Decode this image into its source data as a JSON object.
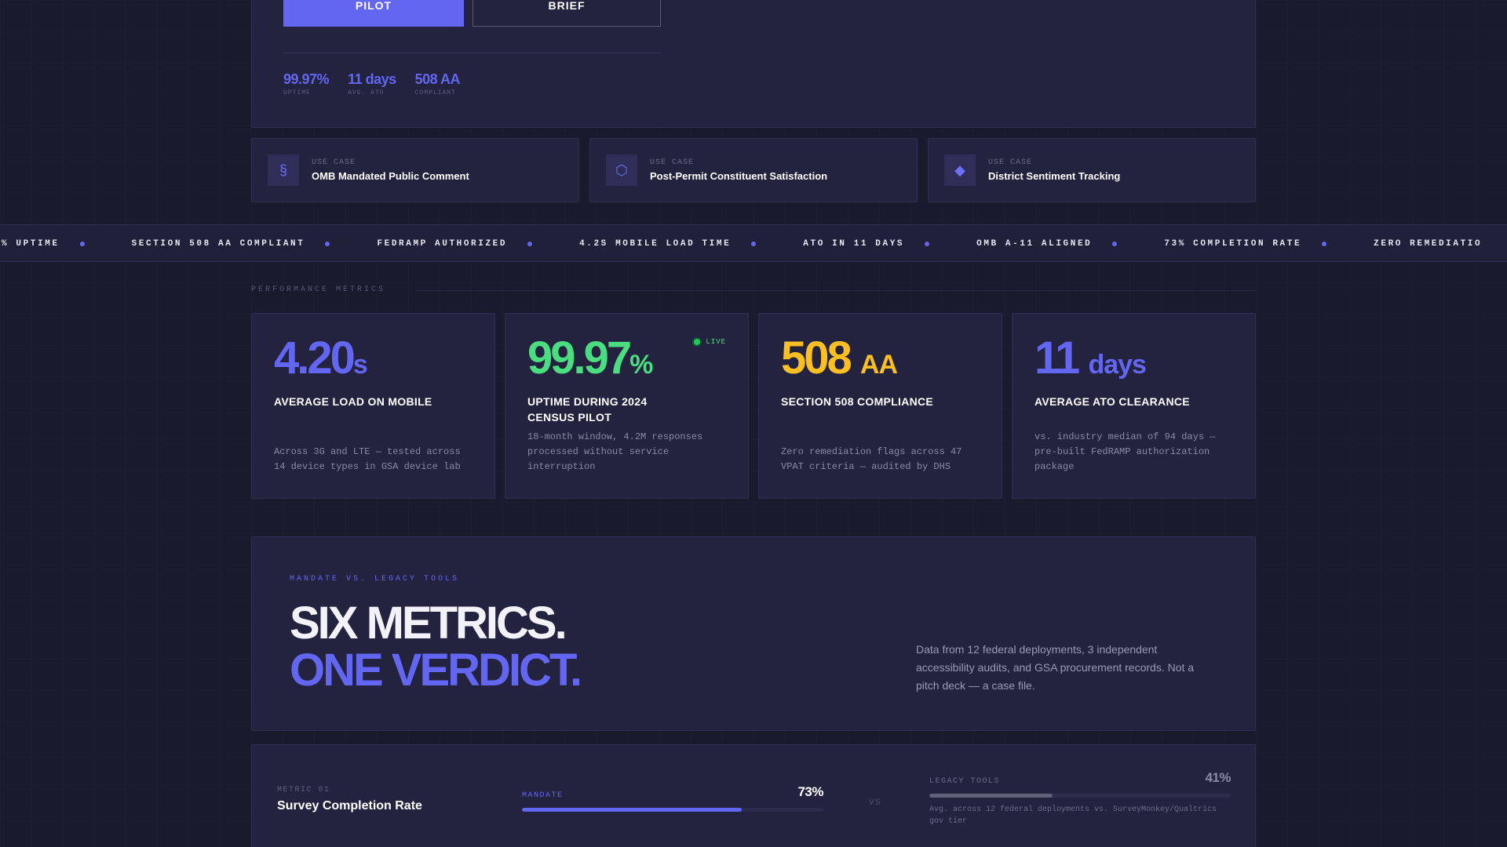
{
  "hero": {
    "primary_button": "PILOT",
    "secondary_button": "BRIEF",
    "stats": [
      {
        "value": "99.97%",
        "label": "UPTIME"
      },
      {
        "value": "11 days",
        "label": "AVG. ATO"
      },
      {
        "value": "508 AA",
        "label": "COMPLIANT"
      }
    ]
  },
  "use_cases": [
    {
      "icon": "section-sign-icon",
      "glyph": "§",
      "label": "USE CASE",
      "title": "OMB Mandated Public Comment"
    },
    {
      "icon": "hexagon-icon",
      "glyph": "⬡",
      "label": "USE CASE",
      "title": "Post-Permit Constituent Satisfaction"
    },
    {
      "icon": "diamond-icon",
      "glyph": "◆",
      "label": "USE CASE",
      "title": "District Sentiment Tracking"
    }
  ],
  "ticker": [
    "% UPTIME",
    "SECTION 508 AA COMPLIANT",
    "FEDRAMP AUTHORIZED",
    "4.2S MOBILE LOAD TIME",
    "ATO IN 11 DAYS",
    "OMB A-11 ALIGNED",
    "73% COMPLETION RATE",
    "ZERO REMEDIATIO"
  ],
  "performance": {
    "section_label": "PERFORMANCE METRICS",
    "metrics": [
      {
        "value": "4.20",
        "unit": "s",
        "color": "#6366f1",
        "title": "AVERAGE LOAD ON MOBILE",
        "desc": "Across 3G and LTE — tested across 14 device types in GSA device lab"
      },
      {
        "value": "99.97",
        "unit": "%",
        "color": "#4ade80",
        "title": "UPTIME DURING 2024 CENSUS PILOT",
        "desc": "18-month window, 4.2M responses processed without service interruption",
        "badge": "LIVE"
      },
      {
        "value": "508",
        "unit": "AA",
        "color": "#fbbf24",
        "title": "SECTION 508 COMPLIANCE",
        "desc": "Zero remediation flags across 47 VPAT criteria — audited by DHS"
      },
      {
        "value": "11",
        "unit": "days",
        "color": "#6366f1",
        "title": "AVERAGE ATO CLEARANCE",
        "desc": "vs. industry median of 94 days — pre-built FedRAMP authorization package"
      }
    ]
  },
  "mandate": {
    "label": "MANDATE VS. LEGACY TOOLS",
    "headline_1": "SIX METRICS.",
    "headline_2": "ONE VERDICT.",
    "desc": "Data from 12 federal deployments, 3 independent accessibility audits, and GSA procurement records. Not a pitch deck — a case file."
  },
  "comparison": {
    "metric_label": "METRIC 01",
    "metric_title": "Survey Completion Rate",
    "mandate_label": "MANDATE",
    "mandate_value": "73%",
    "mandate_fraction": 0.73,
    "vs": "VS",
    "legacy_label": "LEGACY TOOLS",
    "legacy_value": "41%",
    "legacy_fraction": 0.41,
    "legacy_desc": "Avg. across 12 federal deployments vs. SurveyMonkey/Qualtrics gov tier"
  }
}
